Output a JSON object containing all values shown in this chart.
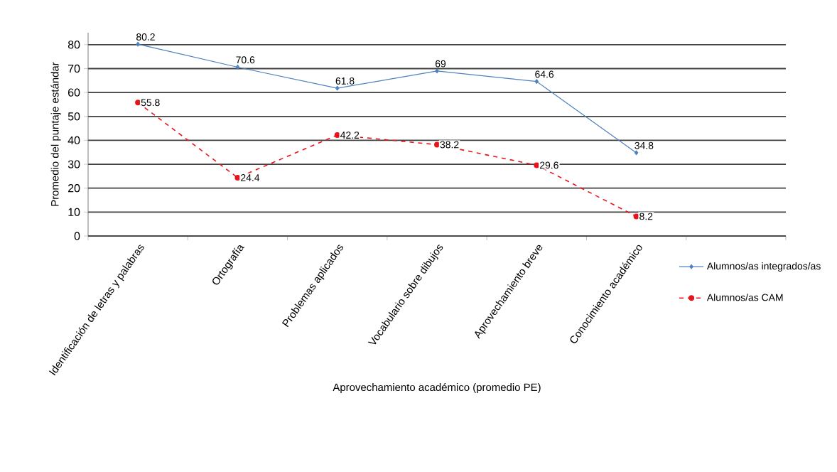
{
  "chart_data": {
    "type": "line",
    "xlabel": "Aprovechamiento académico (promedio PE)",
    "ylabel": "Promedio del puntaje estándar",
    "categories": [
      "Identificación de letras y palabras",
      "Ortografía",
      "Problemas aplicados",
      "Vocabulario sobre dibujos",
      "Aprovechamiento breve",
      "Conocimiento académico",
      null
    ],
    "series": [
      {
        "name": "Alumnos/as integrados/as",
        "color": "#4f81bd",
        "marker": "diamond",
        "line_style": "solid",
        "values": [
          80.2,
          70.6,
          61.8,
          69,
          64.6,
          34.8,
          null
        ]
      },
      {
        "name": "Alumnos/as CAM",
        "color": "#e8141b",
        "marker": "circle",
        "line_style": "dashed",
        "values": [
          55.8,
          24.4,
          42.2,
          38.2,
          29.6,
          8.2,
          null
        ]
      }
    ],
    "ylim": [
      0,
      85
    ],
    "yticks": [
      0,
      10,
      20,
      30,
      40,
      50,
      60,
      70,
      80
    ],
    "grid": "y",
    "legend": "bottom right",
    "data_labels": true
  }
}
